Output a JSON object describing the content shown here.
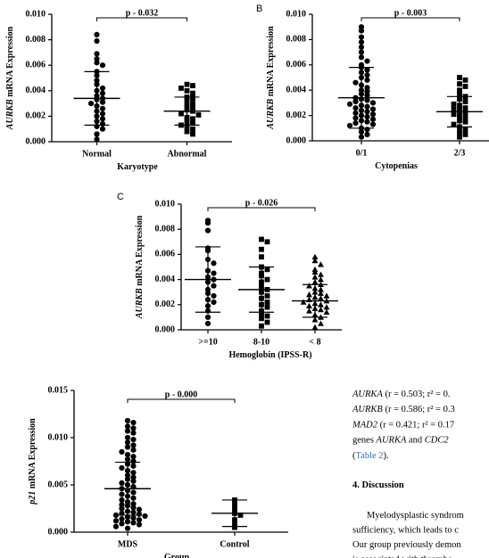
{
  "chart_data": [
    {
      "type": "strip",
      "ylabel_italic": "AURKB",
      "ylabel": "mRNA Expression",
      "xlabel": "Karyotype",
      "annotation": "p - 0.032",
      "ylim": [
        0,
        0.01
      ],
      "yticks": [
        {
          "value": 0,
          "label": "0.000"
        },
        {
          "value": 0.002,
          "label": "0.002"
        },
        {
          "value": 0.004,
          "label": "0.004"
        },
        {
          "value": 0.006,
          "label": "0.006"
        },
        {
          "value": 0.008,
          "label": "0.008"
        },
        {
          "value": 0.01,
          "label": "0.010"
        }
      ],
      "series": [
        {
          "name": "Normal",
          "marker": "circle",
          "color": "#000000",
          "mean": 0.0034,
          "sd": 0.0021,
          "values": [
            0.0084,
            0.0079,
            0.0069,
            0.0065,
            0.0062,
            0.006,
            0.0055,
            0.0052,
            0.0048,
            0.0045,
            0.0042,
            0.004,
            0.0038,
            0.0036,
            0.0034,
            0.0033,
            0.0031,
            0.003,
            0.0028,
            0.0026,
            0.0024,
            0.0022,
            0.002,
            0.0018,
            0.0016,
            0.0014,
            0.0012,
            0.001,
            0.0006,
            0.0002
          ]
        },
        {
          "name": "Abnormal",
          "marker": "square",
          "color": "#000000",
          "mean": 0.0024,
          "sd": 0.0011,
          "values": [
            0.0045,
            0.0044,
            0.0042,
            0.004,
            0.0038,
            0.0035,
            0.0034,
            0.0032,
            0.003,
            0.0028,
            0.0027,
            0.0025,
            0.0024,
            0.0022,
            0.0021,
            0.0019,
            0.0018,
            0.0016,
            0.0015,
            0.0013,
            0.0012,
            0.001,
            0.0008,
            0.0006
          ]
        }
      ]
    },
    {
      "type": "strip",
      "panel_label": "B",
      "ylabel_italic": "AURKB",
      "ylabel": "mRNA Expression",
      "xlabel": "Cytopenias",
      "annotation": "p - 0.003",
      "ylim": [
        0,
        0.01
      ],
      "yticks": [
        {
          "value": 0,
          "label": "0.000"
        },
        {
          "value": 0.002,
          "label": "0.002"
        },
        {
          "value": 0.004,
          "label": "0.004"
        },
        {
          "value": 0.006,
          "label": "0.006"
        },
        {
          "value": 0.008,
          "label": "0.008"
        },
        {
          "value": 0.01,
          "label": "0.010"
        }
      ],
      "series": [
        {
          "name": "0/1",
          "marker": "circle",
          "color": "#000000",
          "mean": 0.0034,
          "sd": 0.0024,
          "values": [
            0.009,
            0.0087,
            0.0082,
            0.0078,
            0.0074,
            0.007,
            0.0066,
            0.0063,
            0.006,
            0.0058,
            0.0056,
            0.0054,
            0.0052,
            0.005,
            0.0048,
            0.0046,
            0.0044,
            0.0042,
            0.004,
            0.0039,
            0.0037,
            0.0036,
            0.0034,
            0.0033,
            0.0032,
            0.0031,
            0.003,
            0.0029,
            0.0028,
            0.0027,
            0.0026,
            0.0025,
            0.0024,
            0.0023,
            0.0022,
            0.0021,
            0.002,
            0.0019,
            0.0018,
            0.0017,
            0.0016,
            0.0015,
            0.0014,
            0.0013,
            0.0012,
            0.001,
            0.0009,
            0.0007,
            0.0005,
            0.0003
          ]
        },
        {
          "name": "2/3",
          "marker": "square",
          "color": "#000000",
          "mean": 0.0023,
          "sd": 0.0012,
          "values": [
            0.005,
            0.0048,
            0.0045,
            0.0043,
            0.004,
            0.0037,
            0.0035,
            0.0033,
            0.0031,
            0.0029,
            0.0028,
            0.0026,
            0.0025,
            0.0024,
            0.0022,
            0.0021,
            0.002,
            0.0018,
            0.0016,
            0.0015,
            0.0013,
            0.0011,
            0.0009,
            0.0007,
            0.0005,
            0.0003
          ]
        }
      ]
    },
    {
      "type": "strip",
      "panel_label": "C",
      "ylabel_italic": "AURKB",
      "ylabel": "mRNA Expression",
      "xlabel": "Hemoglobin (IPSS-R)",
      "annotation": "p - 0.026",
      "ylim": [
        0,
        0.01
      ],
      "yticks": [
        {
          "value": 0,
          "label": "0.000"
        },
        {
          "value": 0.002,
          "label": "0.002"
        },
        {
          "value": 0.004,
          "label": "0.004"
        },
        {
          "value": 0.006,
          "label": "0.006"
        },
        {
          "value": 0.008,
          "label": "0.008"
        },
        {
          "value": 0.01,
          "label": "0.010"
        }
      ],
      "series": [
        {
          "name": ">=10",
          "marker": "circle",
          "color": "#000000",
          "mean": 0.004,
          "sd": 0.0026,
          "values": [
            0.0087,
            0.0085,
            0.0079,
            0.0065,
            0.0063,
            0.0056,
            0.0053,
            0.0047,
            0.0045,
            0.0042,
            0.004,
            0.0038,
            0.0035,
            0.0032,
            0.0029,
            0.0027,
            0.0024,
            0.0022,
            0.0019,
            0.0015,
            0.001,
            0.0005
          ]
        },
        {
          "name": "8-10",
          "marker": "square",
          "color": "#000000",
          "mean": 0.0032,
          "sd": 0.0018,
          "values": [
            0.0072,
            0.007,
            0.0064,
            0.0058,
            0.005,
            0.0048,
            0.0045,
            0.0043,
            0.004,
            0.0038,
            0.0034,
            0.0032,
            0.003,
            0.0027,
            0.0025,
            0.0022,
            0.002,
            0.0018,
            0.0015,
            0.0013,
            0.0011,
            0.0009,
            0.0006,
            0.0003
          ]
        },
        {
          "name": "< 8",
          "marker": "triangle",
          "color": "#000000",
          "mean": 0.0023,
          "sd": 0.0013,
          "values": [
            0.0058,
            0.0055,
            0.0052,
            0.0048,
            0.0046,
            0.0044,
            0.0042,
            0.004,
            0.0038,
            0.0036,
            0.0035,
            0.0033,
            0.0032,
            0.003,
            0.0029,
            0.0028,
            0.0027,
            0.0026,
            0.0025,
            0.0024,
            0.0023,
            0.0022,
            0.0021,
            0.002,
            0.0019,
            0.0018,
            0.0017,
            0.0016,
            0.0015,
            0.0014,
            0.0012,
            0.001,
            0.0008,
            0.0005,
            0.0002
          ]
        }
      ]
    },
    {
      "type": "strip",
      "ylabel_italic": "p21",
      "ylabel": "mRNA Expression",
      "xlabel": "Group",
      "annotation": "p - 0.000",
      "ylim": [
        0,
        0.015
      ],
      "yticks": [
        {
          "value": 0,
          "label": "0.000"
        },
        {
          "value": 0.005,
          "label": "0.005"
        },
        {
          "value": 0.01,
          "label": "0.010"
        },
        {
          "value": 0.015,
          "label": "0.015"
        }
      ],
      "series": [
        {
          "name": "MDS",
          "marker": "circle",
          "color": "#000000",
          "mean": 0.0046,
          "sd": 0.0028,
          "values": [
            0.0118,
            0.0116,
            0.0112,
            0.011,
            0.0107,
            0.0105,
            0.01,
            0.0098,
            0.0095,
            0.0092,
            0.009,
            0.0087,
            0.0085,
            0.0082,
            0.008,
            0.0077,
            0.0075,
            0.0072,
            0.007,
            0.0068,
            0.0065,
            0.0063,
            0.006,
            0.0058,
            0.0056,
            0.0054,
            0.0052,
            0.005,
            0.0048,
            0.0046,
            0.0044,
            0.0042,
            0.004,
            0.0038,
            0.0036,
            0.0034,
            0.0032,
            0.003,
            0.0029,
            0.0028,
            0.0026,
            0.0025,
            0.0024,
            0.0022,
            0.0021,
            0.002,
            0.0019,
            0.0018,
            0.0017,
            0.0016,
            0.0015,
            0.0014,
            0.0013,
            0.0012,
            0.0011,
            0.001,
            0.0009,
            0.0008,
            0.0006,
            0.0004
          ]
        },
        {
          "name": "Control",
          "marker": "square",
          "color": "#000000",
          "mean": 0.002,
          "sd": 0.0014,
          "values": [
            0.0034,
            0.003,
            0.0025,
            0.002,
            0.0018,
            0.0013,
            0.0008,
            0.0005
          ]
        }
      ]
    }
  ],
  "article": {
    "lines": [
      [
        {
          "text": "AURKA",
          "italic": true
        },
        {
          "text": "  (r = 0.503;  r² = 0."
        }
      ],
      [
        {
          "text": "AURKB",
          "italic": true
        },
        {
          "text": "  (r = 0.586;  r² = 0.3"
        }
      ],
      [
        {
          "text": "MAD2",
          "italic": true
        },
        {
          "text": " (r = 0.421; r² = 0.17"
        }
      ],
      [
        {
          "text": "genes  "
        },
        {
          "text": "AURKA",
          "italic": true
        },
        {
          "text": "  and  "
        },
        {
          "text": "CDC2",
          "italic": true
        }
      ],
      [
        {
          "text": "("
        },
        {
          "text": "Table 2",
          "link": true
        },
        {
          "text": ")."
        }
      ]
    ],
    "heading": "4. Discussion",
    "paragraph": [
      "Myelodysplastic syndrom",
      "sufficiency, which leads to c",
      "Our group previously demon",
      "is associated with thrombo"
    ]
  }
}
